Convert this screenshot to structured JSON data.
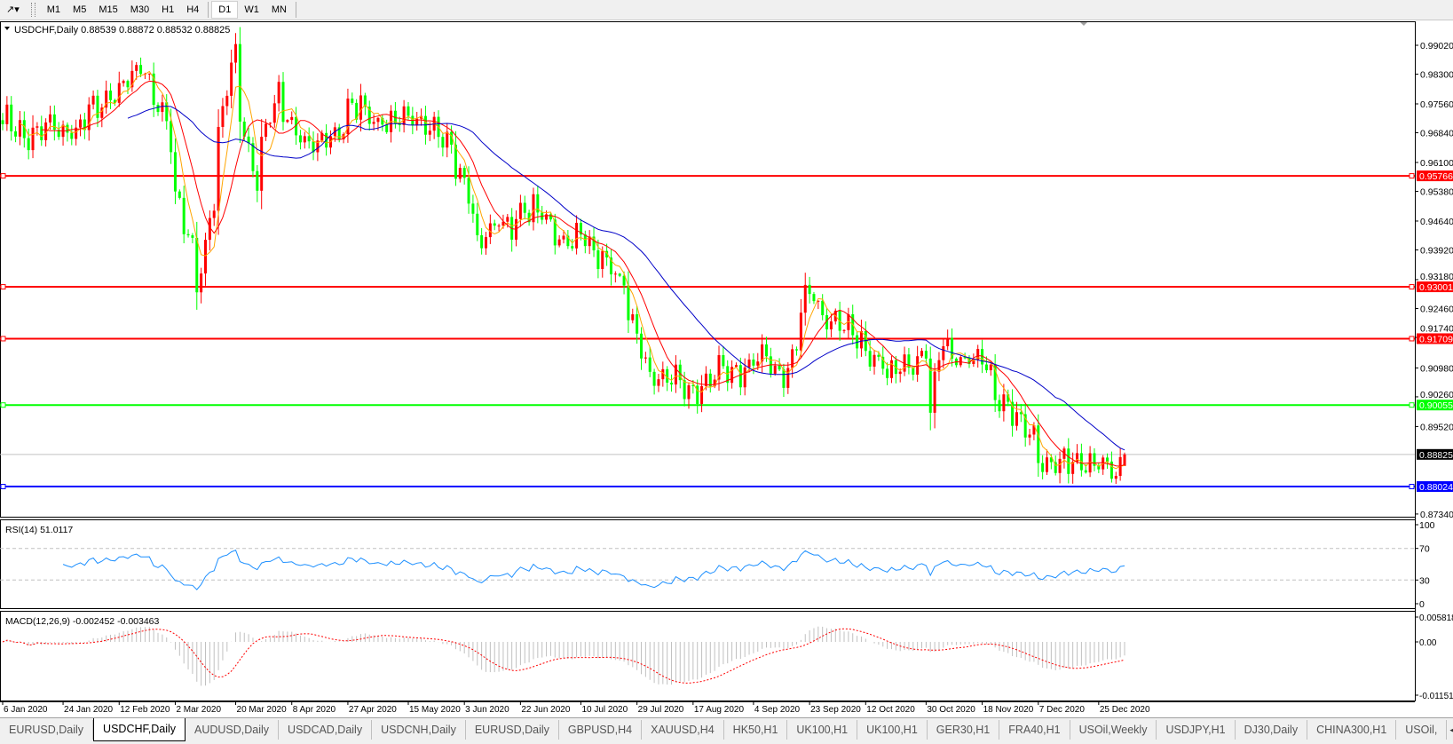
{
  "toolbar": {
    "tool_icon": "crosshair-cursor-icon",
    "timeframes": [
      "M1",
      "M5",
      "M15",
      "M30",
      "H1",
      "H4",
      "D1",
      "W1",
      "MN"
    ],
    "active_timeframe": "D1"
  },
  "chart": {
    "title": "USDCHF,Daily  0.88539 0.88872 0.88532 0.88825",
    "symbol": "USDCHF",
    "period": "Daily",
    "last_ohlc": {
      "open": 0.88539,
      "high": 0.88872,
      "low": 0.88532,
      "close": 0.88825
    },
    "current_price_label": "0.88825",
    "bull_color": "#ff0000",
    "bear_color": "#00ff00",
    "ma_colors": [
      "#ffa500",
      "#ff0000",
      "#0000c8"
    ],
    "price_ticks": [
      "0.99020",
      "0.98300",
      "0.97560",
      "0.96840",
      "0.96100",
      "0.95380",
      "0.94640",
      "0.93920",
      "0.93180",
      "0.92460",
      "0.91740",
      "0.90980",
      "0.90260",
      "0.89520",
      "0.88825",
      "0.87340"
    ],
    "horizontal_lines": [
      {
        "price": 0.95766,
        "label": "0.95766",
        "color": "#ff0000"
      },
      {
        "price": 0.93001,
        "label": "0.93001",
        "color": "#ff0000"
      },
      {
        "price": 0.91709,
        "label": "0.91709",
        "color": "#ff0000"
      },
      {
        "price": 0.90055,
        "label": "0.90055",
        "color": "#00ff00"
      },
      {
        "price": 0.88024,
        "label": "0.88024",
        "color": "#0000ff"
      }
    ],
    "time_labels": [
      "6 Jan 2020",
      "24 Jan 2020",
      "12 Feb 2020",
      "2 Mar 2020",
      "20 Mar 2020",
      "8 Apr 2020",
      "27 Apr 2020",
      "15 May 2020",
      "3 Jun 2020",
      "22 Jun 2020",
      "10 Jul 2020",
      "29 Jul 2020",
      "17 Aug 2020",
      "4 Sep 2020",
      "23 Sep 2020",
      "12 Oct 2020",
      "30 Oct 2020",
      "18 Nov 2020",
      "7 Dec 2020",
      "25 Dec 2020"
    ]
  },
  "rsi": {
    "title": "RSI(14) 51.0117",
    "levels": [
      "100",
      "70",
      "30",
      "0"
    ],
    "color": "#1e90ff"
  },
  "macd": {
    "title": "MACD(12,26,9) -0.002452 -0.003463",
    "ticks": [
      "0.005818",
      "0.00",
      "-0.011514"
    ],
    "histogram_color": "#c0c0c0",
    "signal_color": "#ff0000"
  },
  "chart_data": {
    "type": "candlestick",
    "closes_by_date": [
      [
        "2020-01-06",
        0.9703
      ],
      [
        "2020-01-17",
        0.968
      ],
      [
        "2020-01-24",
        0.969
      ],
      [
        "2020-02-03",
        0.972
      ],
      [
        "2020-02-12",
        0.98
      ],
      [
        "2020-02-20",
        0.983
      ],
      [
        "2020-02-26",
        0.976
      ],
      [
        "2020-03-02",
        0.9507
      ],
      [
        "2020-03-09",
        0.931
      ],
      [
        "2020-03-13",
        0.953
      ],
      [
        "2020-03-20",
        0.9877
      ],
      [
        "2020-03-27",
        0.957
      ],
      [
        "2020-04-03",
        0.977
      ],
      [
        "2020-04-15",
        0.963
      ],
      [
        "2020-04-27",
        0.974
      ],
      [
        "2020-05-15",
        0.971
      ],
      [
        "2020-05-25",
        0.97
      ],
      [
        "2020-06-03",
        0.957
      ],
      [
        "2020-06-08",
        0.941
      ],
      [
        "2020-06-22",
        0.9495
      ],
      [
        "2020-07-10",
        0.941
      ],
      [
        "2020-07-20",
        0.938
      ],
      [
        "2020-07-29",
        0.916
      ],
      [
        "2020-08-05",
        0.9068
      ],
      [
        "2020-08-17",
        0.9048
      ],
      [
        "2020-09-04",
        0.911
      ],
      [
        "2020-09-16",
        0.91
      ],
      [
        "2020-09-23",
        0.928
      ],
      [
        "2020-10-12",
        0.914
      ],
      [
        "2020-10-20",
        0.9068
      ],
      [
        "2020-10-30",
        0.916
      ],
      [
        "2020-11-02",
        0.899
      ],
      [
        "2020-11-05",
        0.916
      ],
      [
        "2020-11-18",
        0.91
      ],
      [
        "2020-12-07",
        0.8883
      ],
      [
        "2020-12-17",
        0.885
      ],
      [
        "2020-12-25",
        0.889
      ],
      [
        "2020-12-31",
        0.881
      ],
      [
        "2021-01-04",
        0.88825
      ]
    ],
    "moving_averages": [
      5,
      10,
      30
    ],
    "ylim": [
      0.872,
      0.992
    ]
  },
  "tabs": {
    "items": [
      "EURUSD,Daily",
      "USDCHF,Daily",
      "AUDUSD,Daily",
      "USDCAD,Daily",
      "USDCNH,Daily",
      "EURUSD,Daily",
      "GBPUSD,H4",
      "XAUUSD,H4",
      "HK50,H1",
      "UK100,H1",
      "UK100,H1",
      "GER30,H1",
      "FRA40,H1",
      "USOil,Weekly",
      "USDJPY,H1",
      "DJ30,Daily",
      "CHINA300,H1",
      "USOil,"
    ],
    "active_index": 1
  }
}
